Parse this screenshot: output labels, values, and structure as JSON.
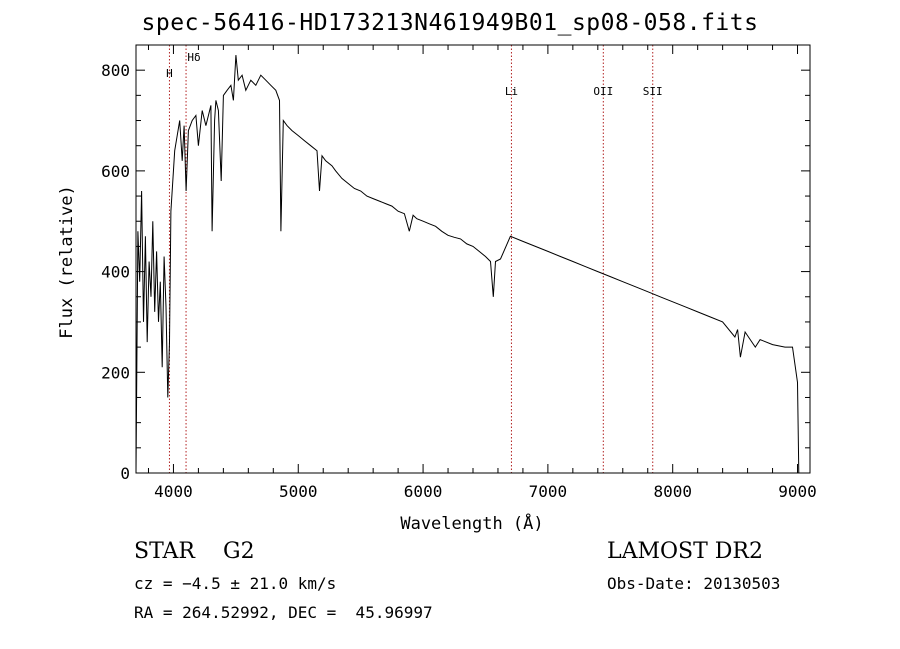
{
  "header": {
    "title": "spec-56416-HD173213N461949B01_sp08-058.fits"
  },
  "info": {
    "object_class": "STAR",
    "subclass": "G2",
    "survey": "LAMOST DR2",
    "redshift": "cz = −4.5 ± 21.0 km/s",
    "obs_date": "Obs-Date: 20130503",
    "coords": "RA = 264.52992, DEC =  45.96997"
  },
  "chart_data": {
    "type": "line",
    "title": "spec-56416-HD173213N461949B01_sp08-058.fits",
    "xlabel": "Wavelength (Å)",
    "ylabel": "Flux (relative)",
    "xlim": [
      3700,
      9100
    ],
    "ylim": [
      0,
      850
    ],
    "xticks": [
      4000,
      5000,
      6000,
      7000,
      8000,
      9000
    ],
    "yticks": [
      0,
      200,
      400,
      600,
      800
    ],
    "grid": false,
    "line_color": "#000000",
    "marker_color": "#b22222",
    "series": [
      {
        "x": [
          3700,
          3715,
          3730,
          3745,
          3760,
          3775,
          3790,
          3805,
          3820,
          3835,
          3850,
          3865,
          3880,
          3895,
          3910,
          3925,
          3940,
          3955,
          3968,
          3980,
          3995,
          4010,
          4030,
          4050,
          4070,
          4085,
          4101,
          4120,
          4150,
          4180,
          4200,
          4230,
          4260,
          4300,
          4310,
          4330,
          4340,
          4360,
          4383,
          4400,
          4430,
          4460,
          4480,
          4500,
          4520,
          4550,
          4580,
          4620,
          4660,
          4700,
          4740,
          4780,
          4820,
          4850,
          4861,
          4880,
          4910,
          4950,
          5000,
          5050,
          5100,
          5150,
          5170,
          5190,
          5220,
          5270,
          5300,
          5350,
          5400,
          5450,
          5500,
          5550,
          5600,
          5650,
          5700,
          5750,
          5800,
          5850,
          5890,
          5920,
          5950,
          6000,
          6050,
          6100,
          6150,
          6200,
          6250,
          6300,
          6350,
          6400,
          6450,
          6500,
          6540,
          6563,
          6580,
          6620,
          6700,
          6800,
          6900,
          7000,
          7100,
          7200,
          7300,
          7400,
          7500,
          7600,
          7700,
          7800,
          7900,
          8000,
          8100,
          8200,
          8300,
          8400,
          8498,
          8520,
          8542,
          8580,
          8662,
          8700,
          8800,
          8900,
          8960,
          9000,
          9010
        ],
        "y": [
          0,
          480,
          380,
          560,
          300,
          470,
          260,
          420,
          350,
          500,
          320,
          440,
          300,
          380,
          210,
          430,
          330,
          150,
          260,
          520,
          580,
          640,
          670,
          700,
          620,
          690,
          560,
          680,
          700,
          710,
          650,
          720,
          690,
          730,
          480,
          700,
          740,
          720,
          580,
          750,
          760,
          770,
          740,
          830,
          780,
          790,
          760,
          780,
          770,
          790,
          780,
          770,
          760,
          740,
          480,
          700,
          690,
          680,
          670,
          660,
          650,
          640,
          560,
          630,
          620,
          610,
          600,
          585,
          575,
          565,
          560,
          550,
          545,
          540,
          535,
          530,
          520,
          515,
          480,
          512,
          505,
          500,
          495,
          490,
          480,
          472,
          468,
          465,
          455,
          450,
          440,
          430,
          420,
          350,
          420,
          425,
          470,
          460,
          450,
          440,
          430,
          420,
          410,
          400,
          390,
          380,
          370,
          360,
          350,
          340,
          330,
          320,
          310,
          300,
          270,
          285,
          230,
          280,
          250,
          265,
          255,
          250,
          250,
          180,
          0
        ]
      }
    ],
    "lines": [
      {
        "label": "H",
        "wavelength": 3968
      },
      {
        "label": "Hδ",
        "wavelength": 4101
      },
      {
        "label": "Li",
        "wavelength": 6708
      },
      {
        "label": "OII",
        "wavelength": 7444
      },
      {
        "label": "SII",
        "wavelength": 7840
      }
    ]
  }
}
